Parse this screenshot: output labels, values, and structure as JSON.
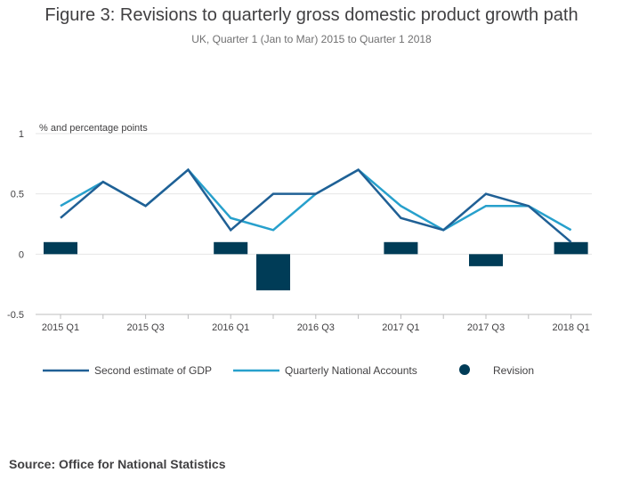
{
  "title": "Figure 3: Revisions to quarterly gross domestic product growth path",
  "subtitle": "UK, Quarter 1 (Jan to Mar) 2015 to Quarter 1 2018",
  "source": "Source: Office for National Statistics",
  "chart_data": {
    "type": "line",
    "ylabel": "% and percentage points",
    "ylim": [
      -0.5,
      1
    ],
    "yticks": [
      -0.5,
      0,
      0.5,
      1
    ],
    "ytick_labels": [
      "-0.5",
      "0",
      "0.5",
      "1"
    ],
    "categories": [
      "2015 Q1",
      "2015 Q2",
      "2015 Q3",
      "2015 Q4",
      "2016 Q1",
      "2016 Q2",
      "2016 Q3",
      "2016 Q4",
      "2017 Q1",
      "2017 Q2",
      "2017 Q3",
      "2017 Q4",
      "2018 Q1"
    ],
    "xtick_labels": [
      "2015 Q1",
      "2015 Q3",
      "2016 Q1",
      "2016 Q3",
      "2017 Q1",
      "2017 Q3",
      "2018 Q1"
    ],
    "series": [
      {
        "name": "Second estimate of GDP",
        "kind": "line",
        "color": "#206095",
        "values": [
          0.3,
          0.6,
          0.4,
          0.7,
          0.2,
          0.5,
          0.5,
          0.7,
          0.3,
          0.2,
          0.5,
          0.4,
          0.1
        ]
      },
      {
        "name": "Quarterly National Accounts",
        "kind": "line",
        "color": "#27a0cc",
        "values": [
          0.4,
          0.6,
          0.4,
          0.7,
          0.3,
          0.2,
          0.5,
          0.7,
          0.4,
          0.2,
          0.4,
          0.4,
          0.2
        ]
      },
      {
        "name": "Revision",
        "kind": "bar",
        "color": "#003c57",
        "values": [
          0.1,
          0,
          0,
          0,
          0.1,
          -0.3,
          0,
          0,
          0.1,
          0,
          -0.1,
          0,
          0.1
        ]
      }
    ],
    "grid": true,
    "legend": "bottom"
  }
}
